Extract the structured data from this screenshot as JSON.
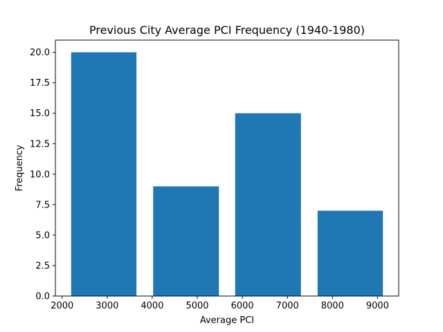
{
  "chart_data": {
    "type": "bar",
    "title": "Previous City Average PCI Frequency (1940-1980)",
    "xlabel": "Average PCI",
    "ylabel": "Frequency",
    "bars": [
      {
        "x_start": 2200,
        "x_end": 3650,
        "value": 20
      },
      {
        "x_start": 4020,
        "x_end": 5480,
        "value": 9
      },
      {
        "x_start": 5840,
        "x_end": 7300,
        "value": 15
      },
      {
        "x_start": 7670,
        "x_end": 9120,
        "value": 7
      }
    ],
    "xlim": [
      1850,
      9470
    ],
    "ylim": [
      0,
      21
    ],
    "xticks": [
      2000,
      3000,
      4000,
      5000,
      6000,
      7000,
      8000,
      9000
    ],
    "xtick_labels": [
      "2000",
      "3000",
      "4000",
      "5000",
      "6000",
      "7000",
      "8000",
      "9000"
    ],
    "yticks": [
      0,
      2.5,
      5,
      7.5,
      10,
      12.5,
      15,
      17.5,
      20
    ],
    "ytick_labels": [
      "0.0",
      "2.5",
      "5.0",
      "7.5",
      "10.0",
      "12.5",
      "15.0",
      "17.5",
      "20.0"
    ],
    "bar_color": "#1f77b4",
    "grid": false
  }
}
